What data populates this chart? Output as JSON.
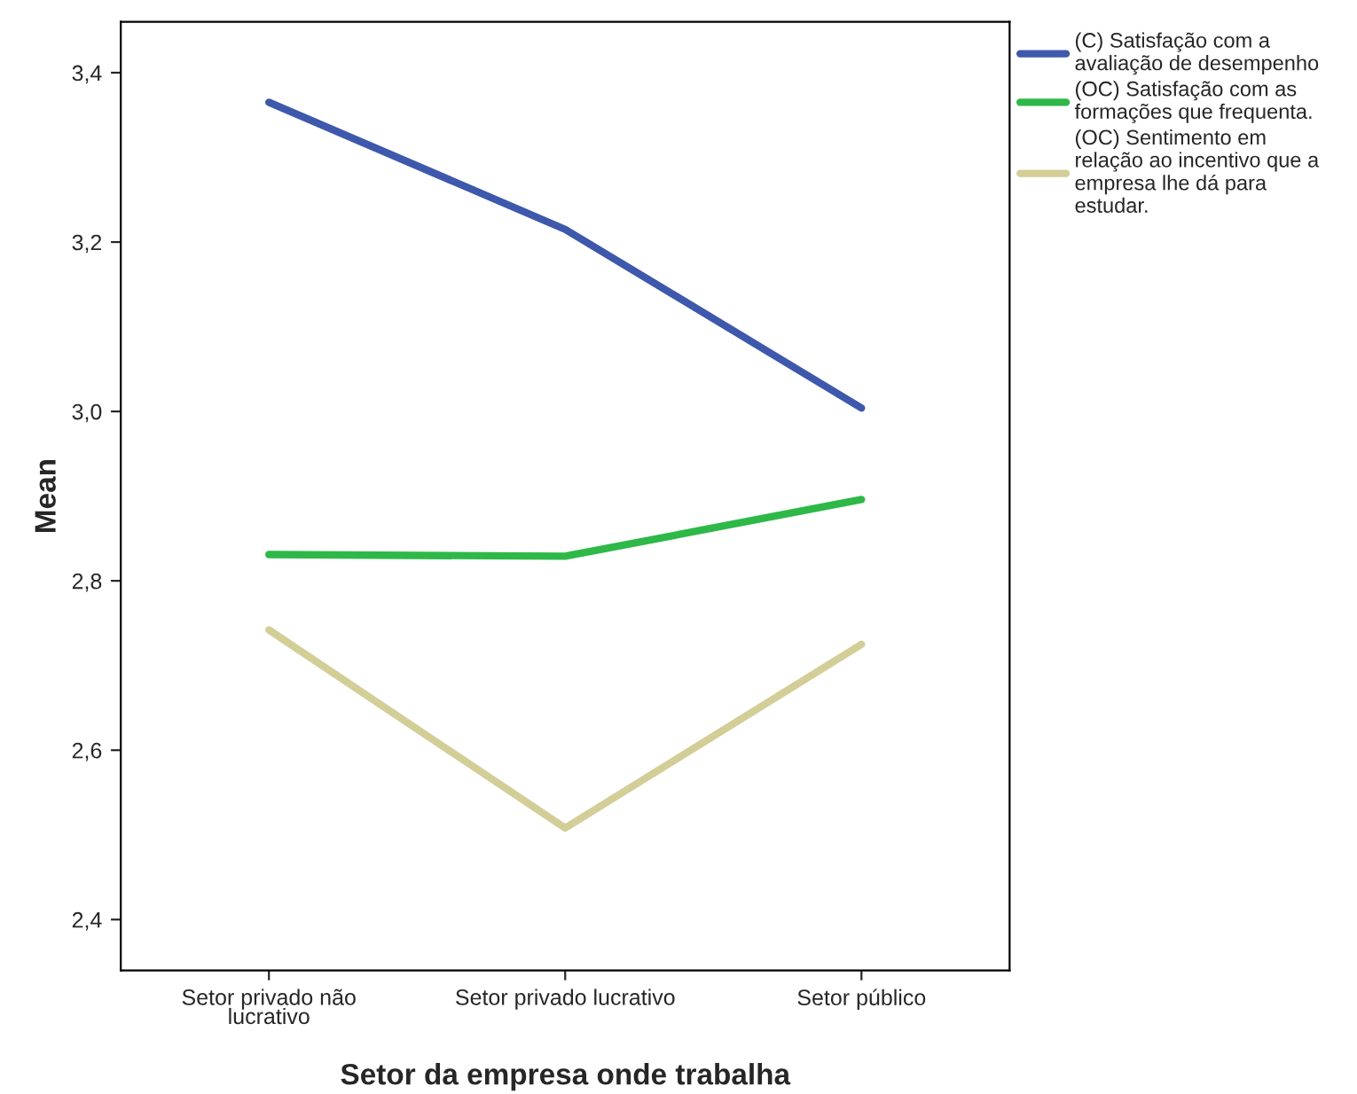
{
  "chart_data": {
    "type": "line",
    "xlabel": "Setor da empresa onde trabalha",
    "ylabel": "Mean",
    "categories": [
      "Setor privado não\nlucrativo",
      "Setor privado lucrativo",
      "Setor público"
    ],
    "series": [
      {
        "name": "(C) Satisfação com a\navaliação de desempenho",
        "color": "#3e58ac",
        "values": [
          3.365,
          3.215,
          3.004
        ]
      },
      {
        "name": "(OC) Satisfação com as\nformações que frequenta.",
        "color": "#2eb848",
        "values": [
          2.831,
          2.829,
          2.896
        ]
      },
      {
        "name": "(OC) Sentimento em\nrelação ao incentivo que a\nempresa lhe dá para\nestudar.",
        "color": "#d3ce97",
        "values": [
          2.742,
          2.508,
          2.725
        ]
      }
    ],
    "ylim": [
      2.34,
      3.46
    ],
    "yticks": [
      {
        "value": 2.4,
        "label": "2,4"
      },
      {
        "value": 2.6,
        "label": "2,6"
      },
      {
        "value": 2.8,
        "label": "2,8"
      },
      {
        "value": 3.0,
        "label": "3,0"
      },
      {
        "value": 3.2,
        "label": "3,2"
      },
      {
        "value": 3.4,
        "label": "3,4"
      }
    ],
    "grid": false,
    "legend": "top right",
    "marker": "none",
    "line_style": "solid"
  }
}
